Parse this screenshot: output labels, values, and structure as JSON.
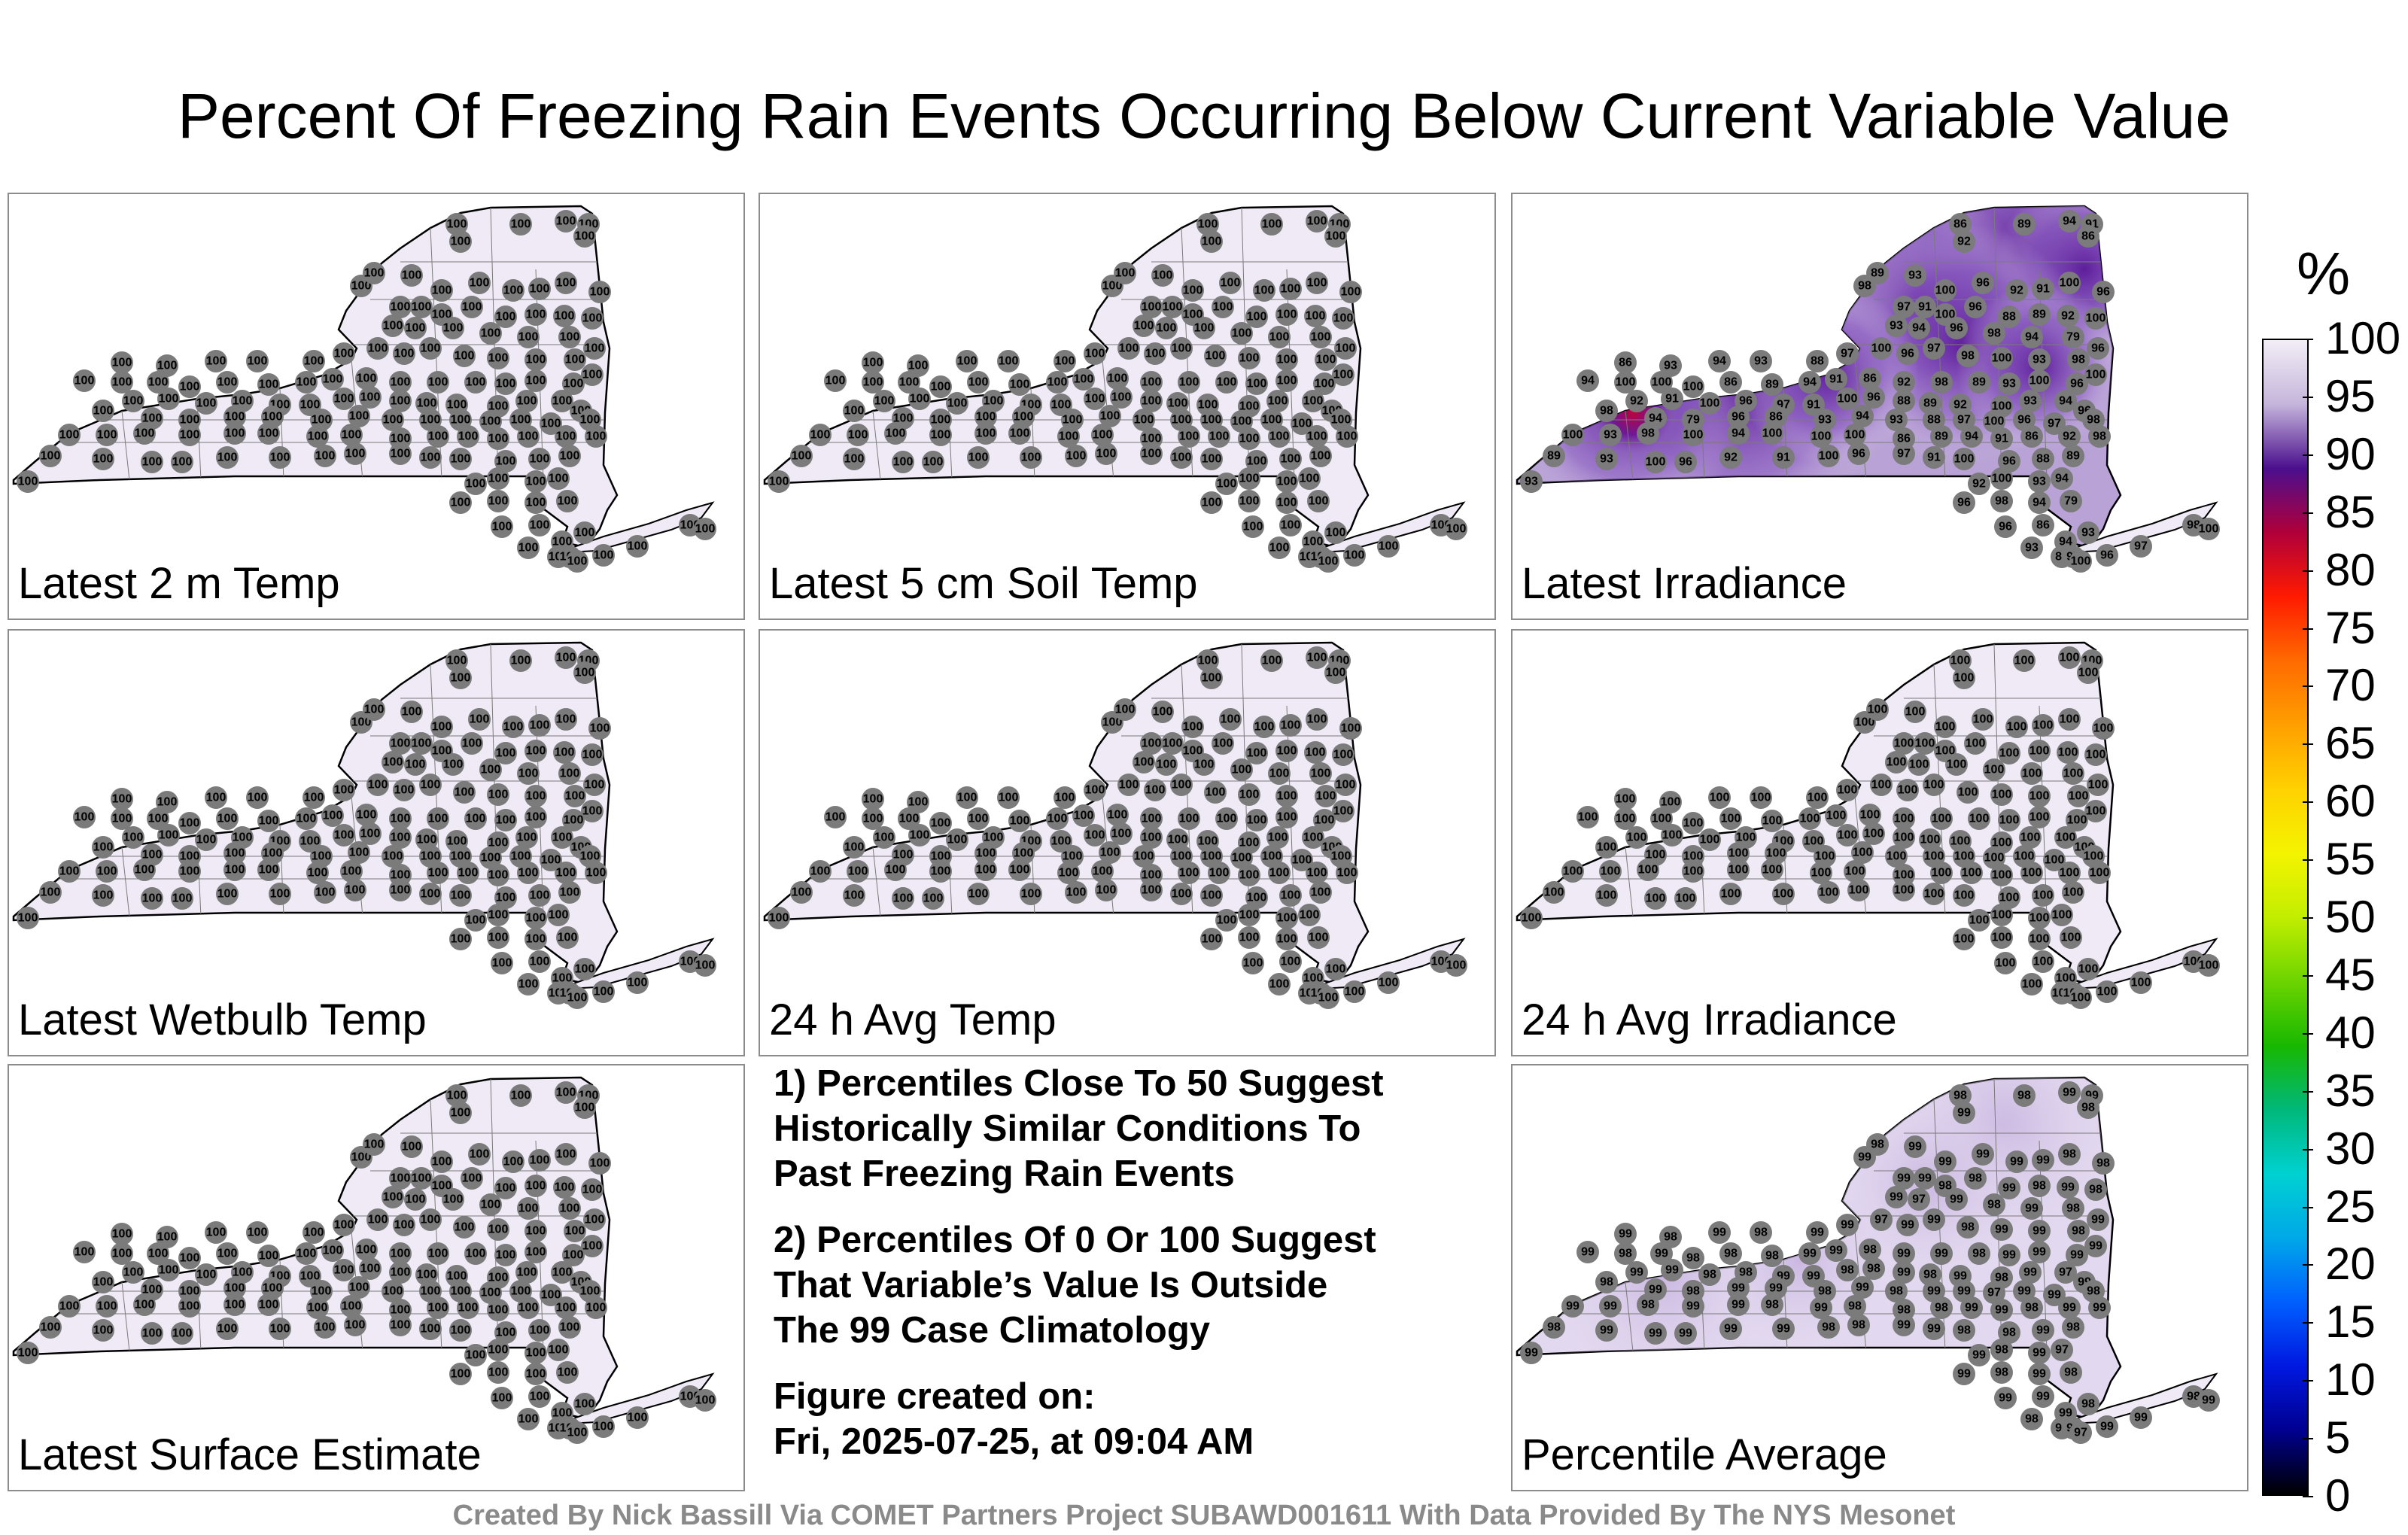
{
  "title": "Percent Of Freezing Rain Events Occurring Below Current Variable Value",
  "colorbar": {
    "unit": "%",
    "ticks": [
      "100",
      "95",
      "90",
      "85",
      "80",
      "75",
      "70",
      "65",
      "60",
      "55",
      "50",
      "45",
      "40",
      "35",
      "30",
      "25",
      "20",
      "15",
      "10",
      "5",
      "0"
    ],
    "colors": [
      "#f2eef6",
      "#c5b5db",
      "#4b0f8e",
      "#b0003a",
      "#ff1a00",
      "#ff6a00",
      "#ff9f00",
      "#ffd100",
      "#f4f400",
      "#c2ee00",
      "#6cd400",
      "#18b800",
      "#00b87a",
      "#00d1d1",
      "#00a8e8",
      "#0060ff",
      "#0018e0",
      "#000090",
      "#000000"
    ]
  },
  "panels": [
    {
      "label": "Latest 2 m Temp",
      "variant": "uniform"
    },
    {
      "label": "Latest 5 cm Soil Temp",
      "variant": "uniform"
    },
    {
      "label": "Latest Irradiance",
      "variant": "irradiance"
    },
    {
      "label": "Latest Wetbulb Temp",
      "variant": "uniform"
    },
    {
      "label": "24 h Avg Temp",
      "variant": "uniform"
    },
    {
      "label": "24 h Avg Irradiance",
      "variant": "uniform"
    },
    {
      "label": "Latest Surface Estimate",
      "variant": "uniform"
    },
    {
      "label": "Percentile Average",
      "variant": "average"
    }
  ],
  "notes": {
    "note1": [
      "1) Percentiles Close To 50 Suggest",
      "Historically Similar Conditions To",
      "Past Freezing Rain Events"
    ],
    "note2": [
      "2) Percentiles Of 0 Or 100 Suggest",
      "That Variable’s Value Is Outside",
      "The 99 Case Climatology"
    ],
    "created": [
      "Figure created on:",
      "Fri, 2025-07-25, at 09:04 AM"
    ]
  },
  "footer": "Created By Nick Bassill Via COMET Partners Project SUBAWD001611 With Data Provided By The NYS Mesonet",
  "map_values": {
    "uniform": "100",
    "irradiance": [
      "86",
      "89",
      "94",
      "91",
      "86",
      "92",
      "98",
      "89",
      "93",
      "100",
      "96",
      "92",
      "91",
      "100",
      "96",
      "97",
      "91",
      "100",
      "96",
      "88",
      "89",
      "92",
      "100",
      "93",
      "94",
      "96",
      "98",
      "94",
      "79",
      "96",
      "86",
      "93",
      "94",
      "93",
      "88",
      "97",
      "100",
      "96",
      "97",
      "98",
      "100",
      "93",
      "98",
      "100",
      "94",
      "100",
      "100",
      "100"
    ],
    "average": [
      "98",
      "98",
      "99",
      "99",
      "98",
      "99",
      "99",
      "98",
      "99",
      "99",
      "99",
      "99",
      "99",
      "98",
      "98",
      "99",
      "99",
      "98",
      "98",
      "99",
      "98",
      "99",
      "98",
      "99",
      "97",
      "99",
      "98",
      "99",
      "98",
      "99",
      "99",
      "98",
      "99",
      "98",
      "99",
      "99",
      "97",
      "99",
      "99",
      "98",
      "99",
      "99",
      "98",
      "99",
      "99",
      "98",
      "99",
      "98"
    ]
  }
}
